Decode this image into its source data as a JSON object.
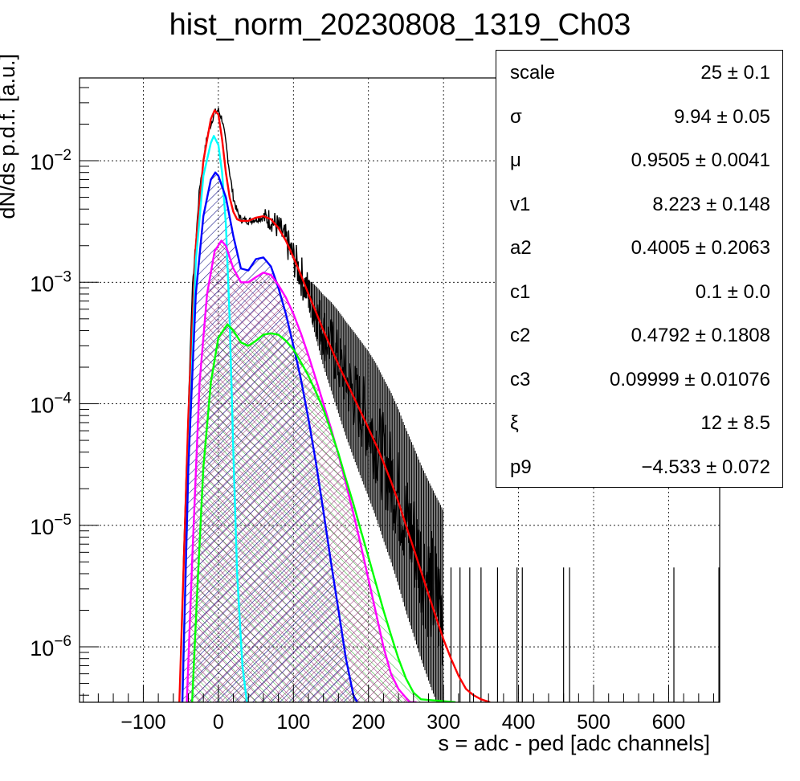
{
  "title": "hist_norm_20230808_1319_Ch03",
  "chart_data": {
    "type": "line",
    "title": "hist_norm_20230808_1319_Ch03",
    "xlabel": "s = adc - ped [adc channels]",
    "ylabel": "dN/ds p.d.f. [a.u.]",
    "x_range": [
      -185,
      668
    ],
    "y_range": [
      3.5e-07,
      0.048
    ],
    "y_scale": "log",
    "grid": true,
    "x_ticks": [
      "−100",
      "0",
      "100",
      "200",
      "300",
      "400",
      "500",
      "600"
    ],
    "y_ticks": [
      {
        "base": "10",
        "exp": "−2"
      },
      {
        "base": "10",
        "exp": "−3"
      },
      {
        "base": "10",
        "exp": "−4"
      },
      {
        "base": "10",
        "exp": "−5"
      },
      {
        "base": "10",
        "exp": "−6"
      }
    ],
    "data_histogram": {
      "color": "#000000",
      "points": [
        [
          -52,
          3.5e-07
        ],
        [
          -45,
          1e-05
        ],
        [
          -35,
          0.0008
        ],
        [
          -25,
          0.006
        ],
        [
          -15,
          0.016
        ],
        [
          -5,
          0.025
        ],
        [
          0,
          0.026
        ],
        [
          5,
          0.022
        ],
        [
          10,
          0.014
        ],
        [
          15,
          0.008
        ],
        [
          20,
          0.005
        ],
        [
          25,
          0.0038
        ],
        [
          30,
          0.0033
        ],
        [
          40,
          0.0032
        ],
        [
          50,
          0.0033
        ],
        [
          60,
          0.0034
        ],
        [
          70,
          0.0033
        ],
        [
          80,
          0.0028
        ],
        [
          90,
          0.0022
        ],
        [
          100,
          0.0016
        ],
        [
          110,
          0.00115
        ],
        [
          120,
          0.0008
        ],
        [
          130,
          0.00057
        ],
        [
          140,
          0.0004
        ],
        [
          150,
          0.0003
        ],
        [
          160,
          0.00022
        ],
        [
          170,
          0.00016
        ],
        [
          180,
          0.00012
        ],
        [
          190,
          9e-05
        ],
        [
          200,
          6.8e-05
        ],
        [
          210,
          5e-05
        ],
        [
          220,
          3.5e-05
        ],
        [
          230,
          2.5e-05
        ],
        [
          240,
          1.7e-05
        ],
        [
          250,
          1.1e-05
        ],
        [
          260,
          7.5e-06
        ],
        [
          270,
          5e-06
        ],
        [
          280,
          3.5e-06
        ],
        [
          290,
          2.5e-06
        ],
        [
          300,
          1.8e-06
        ]
      ]
    },
    "sparse_high_bins": [
      310,
      322,
      335,
      350,
      372,
      398,
      405,
      460,
      468,
      607,
      667
    ],
    "series": [
      {
        "color": "#ff0000",
        "fill": "none",
        "points": [
          [
            -52,
            3.5e-07
          ],
          [
            -45,
            8e-06
          ],
          [
            -40,
            8e-05
          ],
          [
            -30,
            0.002
          ],
          [
            -20,
            0.01
          ],
          [
            -10,
            0.022
          ],
          [
            -5,
            0.026
          ],
          [
            0,
            0.024
          ],
          [
            5,
            0.015
          ],
          [
            10,
            0.008
          ],
          [
            15,
            0.005
          ],
          [
            20,
            0.0038
          ],
          [
            25,
            0.0033
          ],
          [
            30,
            0.0032
          ],
          [
            40,
            0.0032
          ],
          [
            50,
            0.0034
          ],
          [
            60,
            0.0035
          ],
          [
            70,
            0.0033
          ],
          [
            80,
            0.0028
          ],
          [
            90,
            0.0022
          ],
          [
            100,
            0.0016
          ],
          [
            110,
            0.00115
          ],
          [
            120,
            0.0008
          ],
          [
            130,
            0.00057
          ],
          [
            140,
            0.0004
          ],
          [
            150,
            0.00029
          ],
          [
            160,
            0.00021
          ],
          [
            170,
            0.000155
          ],
          [
            180,
            0.000115
          ],
          [
            190,
            8.5e-05
          ],
          [
            200,
            6.3e-05
          ],
          [
            210,
            4.6e-05
          ],
          [
            220,
            3.3e-05
          ],
          [
            230,
            2.3e-05
          ],
          [
            240,
            1.55e-05
          ],
          [
            250,
            1e-05
          ],
          [
            260,
            6.5e-06
          ],
          [
            270,
            4.2e-06
          ],
          [
            280,
            2.7e-06
          ],
          [
            290,
            1.75e-06
          ],
          [
            300,
            1.15e-06
          ],
          [
            310,
            8e-07
          ],
          [
            320,
            5.8e-07
          ],
          [
            330,
            4.5e-07
          ],
          [
            340,
            4e-07
          ],
          [
            350,
            3.7e-07
          ],
          [
            362,
            3.5e-07
          ]
        ]
      },
      {
        "color": "#00ffff",
        "fill": "none",
        "points": [
          [
            -48,
            3.5e-07
          ],
          [
            -40,
            3e-05
          ],
          [
            -30,
            0.0015
          ],
          [
            -20,
            0.0075
          ],
          [
            -10,
            0.014
          ],
          [
            -6,
            0.016
          ],
          [
            0,
            0.0135
          ],
          [
            5,
            0.008
          ],
          [
            10,
            0.003
          ],
          [
            15,
            0.0005
          ],
          [
            20,
            4e-05
          ],
          [
            25,
            4e-06
          ],
          [
            32,
            7e-07
          ],
          [
            38,
            3.5e-07
          ]
        ]
      },
      {
        "color": "#0000ff",
        "fill": "hatch-blue",
        "points": [
          [
            -48,
            3.5e-07
          ],
          [
            -40,
            3e-05
          ],
          [
            -30,
            0.0008
          ],
          [
            -20,
            0.0035
          ],
          [
            -10,
            0.007
          ],
          [
            -4,
            0.008
          ],
          [
            0,
            0.0075
          ],
          [
            10,
            0.005
          ],
          [
            20,
            0.0024
          ],
          [
            30,
            0.0013
          ],
          [
            40,
            0.00125
          ],
          [
            50,
            0.00155
          ],
          [
            60,
            0.0016
          ],
          [
            70,
            0.00135
          ],
          [
            80,
            0.0009
          ],
          [
            90,
            0.00055
          ],
          [
            100,
            0.0003
          ],
          [
            110,
            0.00016
          ],
          [
            120,
            7.5e-05
          ],
          [
            130,
            3.3e-05
          ],
          [
            140,
            1.3e-05
          ],
          [
            150,
            5e-06
          ],
          [
            160,
            2e-06
          ],
          [
            170,
            8e-07
          ],
          [
            180,
            4e-07
          ],
          [
            185,
            3.5e-07
          ]
        ]
      },
      {
        "color": "#ff00ff",
        "fill": "hatch-purple",
        "points": [
          [
            -42,
            3.5e-07
          ],
          [
            -35,
            5e-06
          ],
          [
            -25,
            0.00015
          ],
          [
            -15,
            0.0008
          ],
          [
            -5,
            0.0018
          ],
          [
            4,
            0.0022
          ],
          [
            10,
            0.002
          ],
          [
            20,
            0.0013
          ],
          [
            30,
            0.001
          ],
          [
            40,
            0.001
          ],
          [
            50,
            0.0011
          ],
          [
            60,
            0.0012
          ],
          [
            70,
            0.00115
          ],
          [
            80,
            0.00095
          ],
          [
            90,
            0.00075
          ],
          [
            100,
            0.00055
          ],
          [
            110,
            0.00038
          ],
          [
            120,
            0.00025
          ],
          [
            130,
            0.00016
          ],
          [
            140,
            0.0001
          ],
          [
            150,
            6.3e-05
          ],
          [
            160,
            3.8e-05
          ],
          [
            170,
            2.2e-05
          ],
          [
            180,
            1.25e-05
          ],
          [
            190,
            6.8e-06
          ],
          [
            200,
            3.6e-06
          ],
          [
            210,
            1.9e-06
          ],
          [
            220,
            1e-06
          ],
          [
            230,
            6e-07
          ],
          [
            240,
            4.5e-07
          ],
          [
            255,
            3.5e-07
          ],
          [
            264,
            3.5e-07
          ]
        ]
      },
      {
        "color": "#00ff00",
        "fill": "hatch-green",
        "points": [
          [
            -35,
            3.5e-07
          ],
          [
            -28,
            3e-06
          ],
          [
            -20,
            3e-05
          ],
          [
            -10,
            0.00015
          ],
          [
            0,
            0.00035
          ],
          [
            12,
            0.00045
          ],
          [
            20,
            0.0004
          ],
          [
            30,
            0.00032
          ],
          [
            40,
            0.0003
          ],
          [
            50,
            0.00033
          ],
          [
            60,
            0.00037
          ],
          [
            70,
            0.00038
          ],
          [
            80,
            0.00037
          ],
          [
            90,
            0.00033
          ],
          [
            100,
            0.00028
          ],
          [
            110,
            0.00022
          ],
          [
            120,
            0.00017
          ],
          [
            130,
            0.000125
          ],
          [
            140,
            9e-05
          ],
          [
            150,
            6e-05
          ],
          [
            160,
            3.9e-05
          ],
          [
            170,
            2.4e-05
          ],
          [
            180,
            1.5e-05
          ],
          [
            190,
            9e-06
          ],
          [
            200,
            5.5e-06
          ],
          [
            210,
            3.3e-06
          ],
          [
            220,
            2e-06
          ],
          [
            230,
            1.25e-06
          ],
          [
            240,
            8e-07
          ],
          [
            250,
            5.5e-07
          ],
          [
            260,
            4.2e-07
          ],
          [
            270,
            3.7e-07
          ],
          [
            316,
            3.5e-07
          ]
        ]
      }
    ]
  },
  "stats_box": {
    "rows": [
      {
        "name": "scale",
        "value": "25 ± 0.1"
      },
      {
        "name": "σ",
        "value": "9.94 ± 0.05"
      },
      {
        "name": "μ",
        "value": "0.9505 ± 0.0041"
      },
      {
        "name": "v1",
        "value": "8.223 ± 0.148"
      },
      {
        "name": "a2",
        "value": "0.4005 ± 0.2063"
      },
      {
        "name": "c1",
        "value": "0.1 ± 0.0"
      },
      {
        "name": "c2",
        "value": "0.4792 ± 0.1808"
      },
      {
        "name": "c3",
        "value": "0.09999 ± 0.01076"
      },
      {
        "name": "ξ",
        "value": "12 ± 8.5"
      },
      {
        "name": "p9",
        "value": "−4.533 ± 0.072"
      }
    ]
  }
}
